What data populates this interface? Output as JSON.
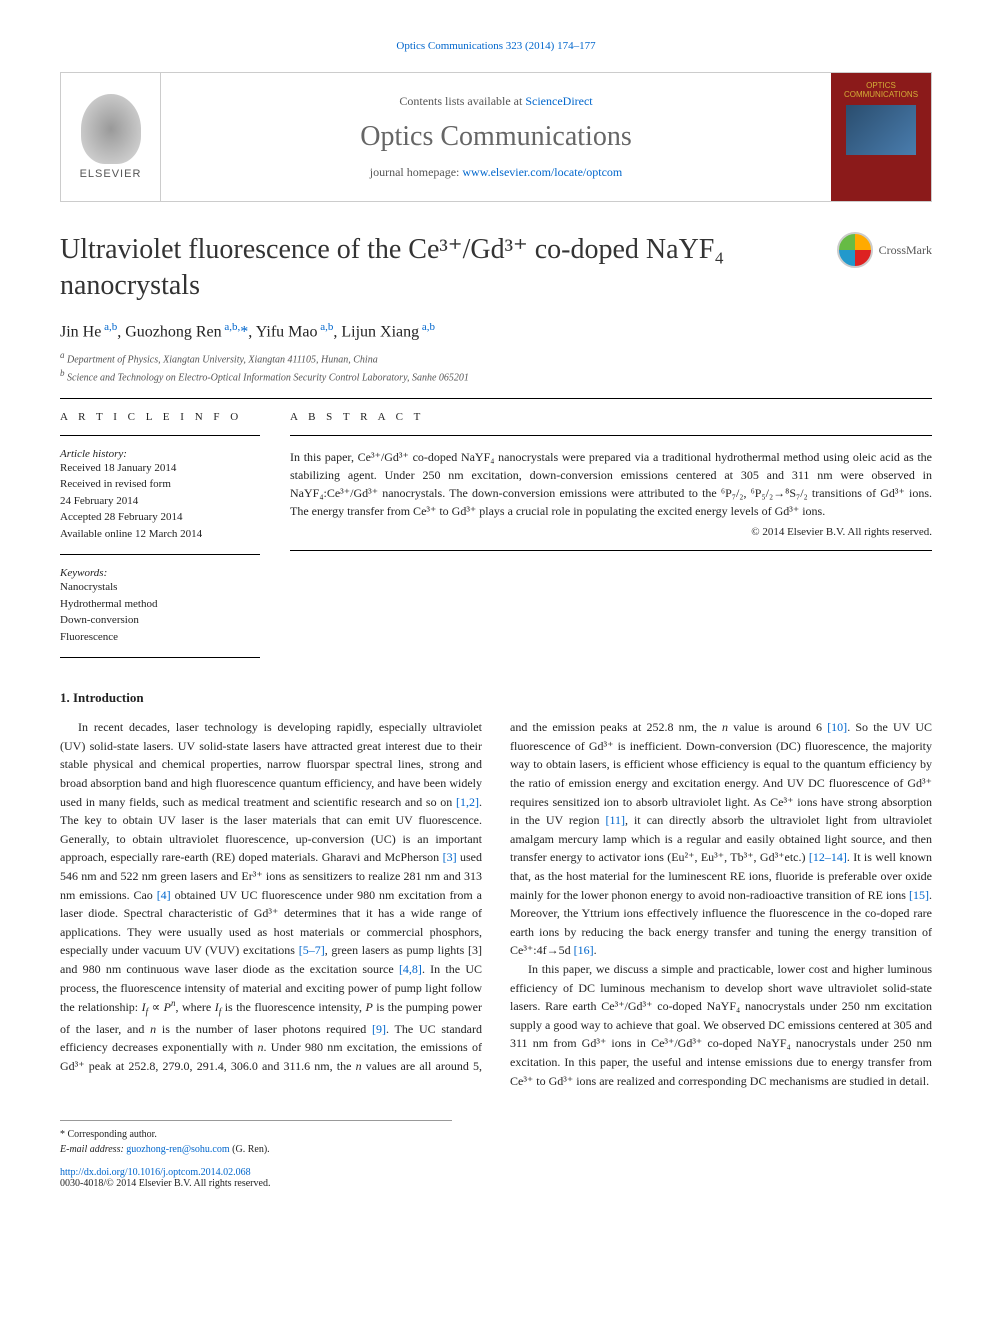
{
  "top_link": {
    "text": "Optics Communications 323 (2014) 174–177"
  },
  "header": {
    "contents_prefix": "Contents lists available at ",
    "contents_link": "ScienceDirect",
    "journal_name": "Optics Communications",
    "homepage_prefix": "journal homepage: ",
    "homepage_link": "www.elsevier.com/locate/optcom",
    "elsevier_label": "ELSEVIER",
    "cover_label": "OPTICS COMMUNICATIONS"
  },
  "crossmark": "CrossMark",
  "title": "Ultraviolet fluorescence of the Ce³⁺/Gd³⁺ co-doped NaYF₄ nanocrystals",
  "authors_html": "Jin He <sup class='author-sup'>a,b</sup>, Guozhong Ren <sup class='author-sup'>a,b,*</sup>, Yifu Mao <sup class='author-sup'>a,b</sup>, Lijun Xiang <sup class='author-sup'>a,b</sup>",
  "affiliations": [
    "Department of Physics, Xiangtan University, Xiangtan 411105, Hunan, China",
    "Science and Technology on Electro-Optical Information Security Control Laboratory, Sanhe 065201"
  ],
  "article_info": {
    "heading": "A R T I C L E  I N F O",
    "history_label": "Article history:",
    "history": [
      "Received 18 January 2014",
      "Received in revised form",
      "24 February 2014",
      "Accepted 28 February 2014",
      "Available online 12 March 2014"
    ],
    "keywords_label": "Keywords:",
    "keywords": [
      "Nanocrystals",
      "Hydrothermal method",
      "Down-conversion",
      "Fluorescence"
    ]
  },
  "abstract": {
    "heading": "A B S T R A C T",
    "text": "In this paper, Ce³⁺/Gd³⁺ co-doped NaYF₄ nanocrystals were prepared via a traditional hydrothermal method using oleic acid as the stabilizing agent. Under 250 nm excitation, down-conversion emissions centered at 305 and 311 nm were observed in NaYF₄:Ce³⁺/Gd³⁺ nanocrystals. The down-conversion emissions were attributed to the ⁶P₇/₂, ⁶P₅/₂→⁸S₇/₂ transitions of Gd³⁺ ions. The energy transfer from Ce³⁺ to Gd³⁺ plays a crucial role in populating the excited energy levels of Gd³⁺ ions.",
    "copyright": "© 2014 Elsevier B.V. All rights reserved."
  },
  "section1": {
    "heading": "1.  Introduction",
    "para1": "In recent decades, laser technology is developing rapidly, especially ultraviolet (UV) solid-state lasers. UV solid-state lasers have attracted great interest due to their stable physical and chemical properties, narrow fluorspar spectral lines, strong and broad absorption band and high fluorescence quantum efficiency, and have been widely used in many fields, such as medical treatment and scientific research and so on [1,2]. The key to obtain UV laser is the laser materials that can emit UV fluorescence. Generally, to obtain ultraviolet fluorescence, up-conversion (UC) is an important approach, especially rare-earth (RE) doped materials. Gharavi and McPherson [3] used 546 nm and 522 nm green lasers and Er³⁺ ions as sensitizers to realize 281 nm and 313 nm emissions. Cao [4] obtained UV UC fluorescence under 980 nm excitation from a laser diode. Spectral characteristic of Gd³⁺ determines that it has a wide range of applications. They were usually used as host materials or commercial phosphors, especially under vacuum UV (VUV) excitations [5–7], green lasers as pump lights [3] and 980 nm continuous wave laser diode as the excitation source [4,8]. In the UC process, the fluorescence intensity of material and exciting power of pump light follow the relationship: If ∝ Pⁿ, where If is the fluorescence intensity, P is the pumping power of the laser, and n is the number of laser photons required [9]. The UC standard efficiency decreases exponentially",
    "para1_continued": "with n. Under 980 nm excitation, the emissions of Gd³⁺ peak at 252.8, 279.0, 291.4, 306.0 and 311.6 nm, the n values are all around 5, and the emission peaks at 252.8 nm, the n value is around 6 [10]. So the UV UC fluorescence of Gd³⁺ is inefficient. Down-conversion (DC) fluorescence, the majority way to obtain lasers, is efficient whose efficiency is equal to the quantum efficiency by the ratio of emission energy and excitation energy. And UV DC fluorescence of Gd³⁺ requires sensitized ion to absorb ultraviolet light. As Ce³⁺ ions have strong absorption in the UV region [11], it can directly absorb the ultraviolet light from ultraviolet amalgam mercury lamp which is a regular and easily obtained light source, and then transfer energy to activator ions (Eu²⁺, Eu³⁺, Tb³⁺, Gd³⁺etc.) [12–14]. It is well known that, as the host material for the luminescent RE ions, fluoride is preferable over oxide mainly for the lower phonon energy to avoid non-radioactive transition of RE ions [15]. Moreover, the Yttrium ions effectively influence the fluorescence in the co-doped rare earth ions by reducing the back energy transfer and tuning the energy transition of Ce³⁺:4f→5d [16].",
    "para2": "In this paper, we discuss a simple and practicable, lower cost and higher luminous efficiency of DC luminous mechanism to develop short wave ultraviolet solid-state lasers. Rare earth Ce³⁺/Gd³⁺ co-doped NaYF₄ nanocrystals under 250 nm excitation supply a good way to achieve that goal. We observed DC emissions centered at 305 and 311 nm from Gd³⁺ ions in Ce³⁺/Gd³⁺ co-doped NaYF₄ nanocrystals under 250 nm excitation. In this paper, the useful and intense emissions due to energy transfer from Ce³⁺ to Gd³⁺ ions are realized and corresponding DC mechanisms are studied in detail."
  },
  "footer": {
    "corresp": "* Corresponding author.",
    "email_label": "E-mail address: ",
    "email": "guozhong-ren@sohu.com",
    "email_suffix": " (G. Ren).",
    "doi": "http://dx.doi.org/10.1016/j.optcom.2014.02.068",
    "issn": "0030-4018/© 2014 Elsevier B.V. All rights reserved."
  },
  "ref_links": {
    "r12": "[1,2]",
    "r3": "[3]",
    "r4": "[4]",
    "r57": "[5–7]",
    "r48": "[4,8]",
    "r9": "[9]",
    "r10": "[10]",
    "r11": "[11]",
    "r1214": "[12–14]",
    "r15": "[15]",
    "r16": "[16]"
  }
}
